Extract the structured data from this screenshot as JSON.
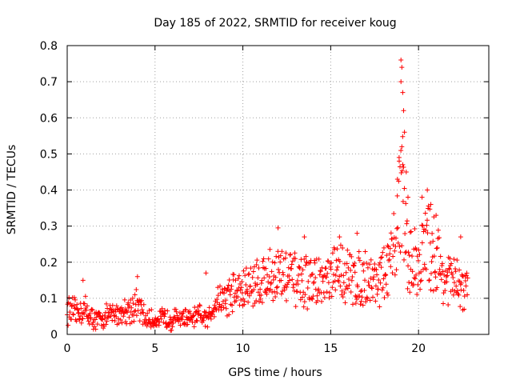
{
  "chart_data": {
    "type": "scatter",
    "title": "Day 185 of 2022, SRMTID for receiver koug",
    "xlabel": "GPS time / hours",
    "ylabel": "SRMTID / TECUs",
    "xlim": [
      0,
      24
    ],
    "ylim": [
      0,
      0.8
    ],
    "x_ticks": [
      "0",
      "5",
      "10",
      "15",
      "20"
    ],
    "y_ticks": [
      "0",
      "0.1",
      "0.2",
      "0.3",
      "0.4",
      "0.5",
      "0.6",
      "0.7",
      "0.8"
    ],
    "grid": true,
    "marker": "+",
    "series": [
      {
        "name": "SRMTID",
        "color": "#ff0000",
        "profile": [
          [
            0.0,
            0.07
          ],
          [
            0.5,
            0.06
          ],
          [
            1.0,
            0.07
          ],
          [
            1.5,
            0.04
          ],
          [
            2.0,
            0.045
          ],
          [
            2.5,
            0.055
          ],
          [
            3.0,
            0.06
          ],
          [
            3.5,
            0.07
          ],
          [
            4.0,
            0.08
          ],
          [
            4.5,
            0.04
          ],
          [
            5.0,
            0.04
          ],
          [
            5.5,
            0.045
          ],
          [
            6.0,
            0.04
          ],
          [
            6.5,
            0.05
          ],
          [
            7.0,
            0.04
          ],
          [
            7.5,
            0.05
          ],
          [
            8.0,
            0.04
          ],
          [
            8.5,
            0.1
          ],
          [
            9.0,
            0.1
          ],
          [
            9.5,
            0.12
          ],
          [
            10.0,
            0.12
          ],
          [
            10.5,
            0.14
          ],
          [
            11.0,
            0.15
          ],
          [
            11.5,
            0.16
          ],
          [
            12.0,
            0.17
          ],
          [
            12.5,
            0.16
          ],
          [
            13.0,
            0.15
          ],
          [
            13.5,
            0.14
          ],
          [
            14.0,
            0.15
          ],
          [
            14.5,
            0.14
          ],
          [
            15.0,
            0.15
          ],
          [
            15.5,
            0.18
          ],
          [
            16.0,
            0.16
          ],
          [
            16.5,
            0.15
          ],
          [
            17.0,
            0.16
          ],
          [
            17.5,
            0.15
          ],
          [
            18.0,
            0.16
          ],
          [
            18.5,
            0.2
          ],
          [
            18.8,
            0.3
          ],
          [
            19.0,
            0.45
          ],
          [
            19.3,
            0.25
          ],
          [
            19.5,
            0.2
          ],
          [
            20.0,
            0.2
          ],
          [
            20.5,
            0.25
          ],
          [
            21.0,
            0.22
          ],
          [
            21.5,
            0.15
          ],
          [
            22.0,
            0.15
          ],
          [
            22.5,
            0.12
          ],
          [
            22.8,
            0.13
          ]
        ],
        "spikes": [
          [
            19.0,
            0.76
          ],
          [
            19.05,
            0.74
          ],
          [
            19.0,
            0.7
          ],
          [
            19.1,
            0.67
          ],
          [
            19.15,
            0.62
          ],
          [
            19.2,
            0.56
          ],
          [
            19.05,
            0.52
          ],
          [
            18.9,
            0.48
          ],
          [
            19.1,
            0.47
          ],
          [
            19.3,
            0.45
          ],
          [
            18.8,
            0.43
          ],
          [
            19.4,
            0.38
          ],
          [
            20.2,
            0.38
          ],
          [
            20.5,
            0.4
          ],
          [
            20.7,
            0.36
          ],
          [
            21.0,
            0.33
          ],
          [
            22.4,
            0.27
          ],
          [
            12.0,
            0.295
          ],
          [
            13.5,
            0.27
          ],
          [
            15.5,
            0.27
          ],
          [
            16.5,
            0.28
          ],
          [
            4.0,
            0.16
          ],
          [
            0.9,
            0.15
          ],
          [
            7.9,
            0.17
          ]
        ]
      }
    ]
  }
}
